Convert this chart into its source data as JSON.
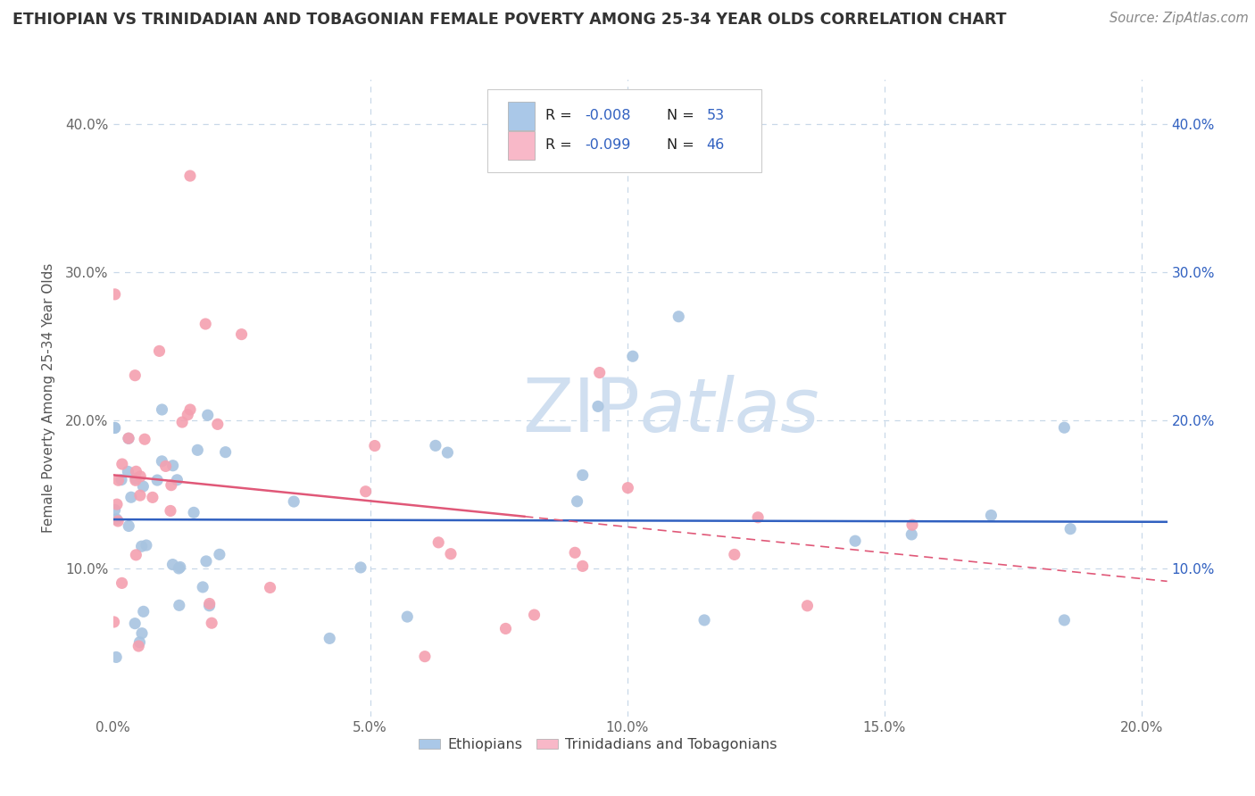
{
  "title": "ETHIOPIAN VS TRINIDADIAN AND TOBAGONIAN FEMALE POVERTY AMONG 25-34 YEAR OLDS CORRELATION CHART",
  "source": "Source: ZipAtlas.com",
  "ylabel_label": "Female Poverty Among 25-34 Year Olds",
  "xlim": [
    0.0,
    0.205
  ],
  "ylim": [
    0.0,
    0.43
  ],
  "xticks": [
    0.0,
    0.05,
    0.1,
    0.15,
    0.2
  ],
  "xtick_labels": [
    "0.0%",
    "5.0%",
    "10.0%",
    "15.0%",
    "20.0%"
  ],
  "yticks": [
    0.0,
    0.1,
    0.2,
    0.3,
    0.4
  ],
  "ytick_labels": [
    "",
    "10.0%",
    "20.0%",
    "30.0%",
    "40.0%"
  ],
  "blue_color": "#a8c4e0",
  "pink_color": "#f4a0b0",
  "blue_line_color": "#3060c0",
  "pink_line_color": "#e05878",
  "grid_color": "#c8d8e8",
  "blue_legend_color": "#aac8e8",
  "pink_legend_color": "#f8b8c8",
  "text_blue": "#3060c0",
  "R_eth": -0.008,
  "N_eth": 53,
  "R_tri": -0.099,
  "N_tri": 46,
  "eth_intercept": 0.133,
  "eth_slope": -0.008,
  "tri_intercept": 0.163,
  "tri_slope": -0.35,
  "watermark_color": "#d0dff0"
}
